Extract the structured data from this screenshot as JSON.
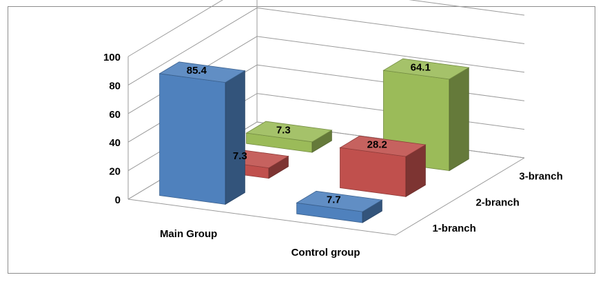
{
  "chart_data": {
    "type": "bar",
    "title": "",
    "xlabel": "",
    "ylabel": "",
    "ylim": [
      0,
      100
    ],
    "yticks": [
      0,
      20,
      40,
      60,
      80,
      100
    ],
    "grid": true,
    "categories": [
      "Main Group",
      "Control group"
    ],
    "series": [
      {
        "name": "1-branch",
        "values": [
          85.4,
          7.7
        ],
        "color": "#4f81bd"
      },
      {
        "name": "2-branch",
        "values": [
          7.3,
          28.2
        ],
        "color": "#c0504d"
      },
      {
        "name": "3-branch",
        "values": [
          7.3,
          64.1
        ],
        "color": "#9bbb59"
      }
    ]
  }
}
